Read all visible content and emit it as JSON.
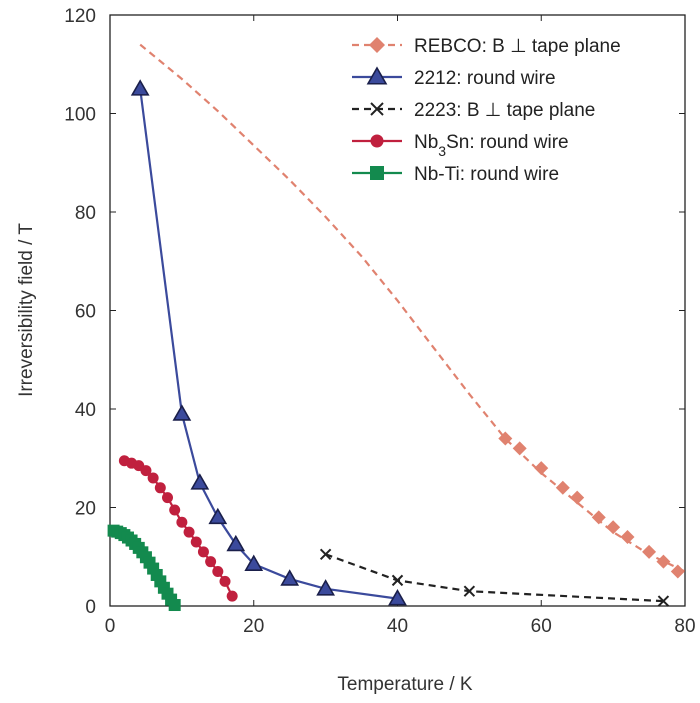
{
  "chart_data": {
    "type": "line",
    "xlabel": "Temperature / K",
    "ylabel": "Irreversibility field / T",
    "xlim": [
      0,
      80
    ],
    "ylim": [
      0,
      120
    ],
    "xticks": [
      0,
      20,
      40,
      60,
      80
    ],
    "yticks": [
      0,
      20,
      40,
      60,
      80,
      100,
      120
    ],
    "grid": false,
    "legend_position": "top-right",
    "series": [
      {
        "name": "REBCO: B ⊥ tape plane",
        "color": "#e0826f",
        "line": "dashed",
        "marker": "diamond",
        "line_x": [
          4.2,
          10,
          15,
          20,
          25,
          30,
          35,
          40,
          45,
          50,
          55,
          60,
          65,
          70,
          75,
          80
        ],
        "line_y": [
          114,
          107,
          100.5,
          93.5,
          86.5,
          79,
          71,
          62,
          52.5,
          43,
          34,
          27,
          21,
          15,
          10.5,
          7
        ],
        "x": [
          55,
          57,
          60,
          63,
          65,
          68,
          70,
          72,
          75,
          77,
          79
        ],
        "y": [
          34,
          32,
          28,
          24,
          22,
          18,
          16,
          14,
          11,
          9,
          7
        ]
      },
      {
        "name": "2212: round wire",
        "color": "#3b4a9c",
        "line": "solid",
        "marker": "triangle",
        "x": [
          4.2,
          10,
          12.5,
          15,
          17.5,
          20,
          25,
          30,
          40
        ],
        "y": [
          105,
          39,
          25,
          18,
          12.5,
          8.5,
          5.5,
          3.5,
          1.5
        ]
      },
      {
        "name": "2223: B ⊥ tape plane",
        "color": "#222222",
        "line": "dashed",
        "marker": "x",
        "x": [
          30,
          40,
          50,
          77
        ],
        "y": [
          10.5,
          5.2,
          3,
          1
        ]
      },
      {
        "name": "Nb3Sn: round wire",
        "color": "#c0203e",
        "line": "solid",
        "marker": "circle",
        "x": [
          2,
          3,
          4,
          5,
          6,
          7,
          8,
          9,
          10,
          11,
          12,
          13,
          14,
          15,
          16,
          17
        ],
        "y": [
          29.5,
          29,
          28.5,
          27.5,
          26,
          24,
          22,
          19.5,
          17,
          15,
          13,
          11,
          9,
          7,
          5,
          2
        ]
      },
      {
        "name": "Nb-Ti: round wire",
        "color": "#138a4e",
        "line": "solid",
        "marker": "square",
        "x": [
          0.5,
          1,
          1.5,
          2,
          2.5,
          3,
          3.5,
          4,
          4.5,
          5,
          5.5,
          6,
          6.5,
          7,
          7.5,
          8,
          8.5,
          9
        ],
        "y": [
          15.3,
          15.1,
          14.8,
          14.4,
          13.9,
          13.3,
          12.6,
          11.8,
          10.9,
          9.9,
          8.8,
          7.6,
          6.3,
          5,
          3.7,
          2.5,
          1.3,
          0.2
        ]
      }
    ]
  }
}
